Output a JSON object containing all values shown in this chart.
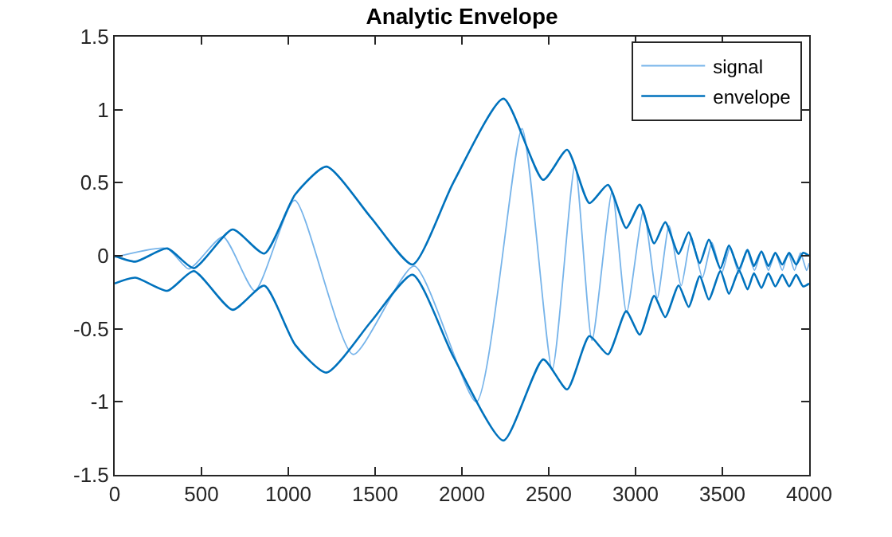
{
  "chart_data": {
    "type": "line",
    "title": "Analytic Envelope",
    "xlim": [
      0,
      4000
    ],
    "xticks": [
      0,
      500,
      1000,
      1500,
      2000,
      2500,
      3000,
      3500,
      4000
    ],
    "ylim": [
      -1.5,
      1.5
    ],
    "yticks": [
      -1.5,
      -1,
      -0.5,
      0,
      0.5,
      1,
      1.5
    ],
    "grid": false,
    "legend": "top right",
    "marker": "none",
    "line_style": "solid",
    "series": [
      {
        "name": "signal",
        "color": "#77b4ea",
        "x": [
          0,
          303,
          427,
          624,
          807,
          1037,
          1373,
          1725,
          2083,
          2346,
          2520,
          2651,
          2749,
          2865,
          2948,
          3046,
          3125,
          3193,
          3263,
          3321,
          3385,
          3440,
          3495,
          3545,
          3595,
          3640,
          3685,
          3725,
          3765,
          3805,
          3845,
          3880,
          3915,
          3950,
          3985,
          4000
        ],
        "values": [
          -0.01,
          0.05,
          -0.09,
          0.13,
          -0.24,
          0.38,
          -0.675,
          -0.07,
          -1.0,
          0.87,
          -0.78,
          0.62,
          -0.58,
          0.44,
          -0.39,
          0.31,
          -0.29,
          0.205,
          -0.205,
          0.13,
          -0.15,
          0.09,
          -0.12,
          0.06,
          -0.12,
          0.04,
          -0.1,
          0.03,
          -0.1,
          0.02,
          -0.1,
          0.02,
          -0.1,
          0.02,
          -0.1,
          -0.05
        ]
      },
      {
        "name": "envelope",
        "color": "#0072bd",
        "x": [
          0,
          119,
          303,
          456,
          679,
          862,
          1040,
          1220,
          1477,
          1716,
          1950,
          2239,
          2468,
          2606,
          2734,
          2841,
          2946,
          3024,
          3107,
          3171,
          3248,
          3306,
          3370,
          3422,
          3489,
          3538,
          3596,
          3645,
          3682,
          3725,
          3765,
          3805,
          3845,
          3885,
          3925,
          3965,
          4000
        ],
        "values": [
          0,
          -0.04,
          0.05,
          -0.085,
          0.18,
          0.015,
          0.42,
          0.61,
          0.26,
          -0.06,
          0.5,
          1.075,
          0.52,
          0.725,
          0.36,
          0.485,
          0.19,
          0.35,
          0.085,
          0.23,
          0.013,
          0.16,
          -0.05,
          0.11,
          -0.085,
          0.07,
          -0.09,
          0.04,
          -0.07,
          0.03,
          -0.07,
          0.02,
          -0.06,
          0.02,
          -0.06,
          0.02,
          0
        ]
      },
      {
        "color": "#0072bd",
        "x": [
          0,
          119,
          303,
          456,
          679,
          862,
          1040,
          1220,
          1477,
          1716,
          1950,
          2239,
          2468,
          2606,
          2734,
          2841,
          2946,
          3024,
          3107,
          3171,
          3248,
          3306,
          3370,
          3422,
          3489,
          3538,
          3596,
          3645,
          3682,
          3725,
          3765,
          3805,
          3845,
          3885,
          3925,
          3965,
          4000
        ],
        "values": [
          -0.19,
          -0.15,
          -0.24,
          -0.105,
          -0.37,
          -0.205,
          -0.61,
          -0.8,
          -0.45,
          -0.13,
          -0.69,
          -1.265,
          -0.71,
          -0.915,
          -0.55,
          -0.675,
          -0.38,
          -0.54,
          -0.275,
          -0.42,
          -0.203,
          -0.35,
          -0.14,
          -0.3,
          -0.105,
          -0.26,
          -0.1,
          -0.23,
          -0.12,
          -0.22,
          -0.12,
          -0.21,
          -0.13,
          -0.21,
          -0.13,
          -0.21,
          -0.19
        ]
      }
    ]
  }
}
